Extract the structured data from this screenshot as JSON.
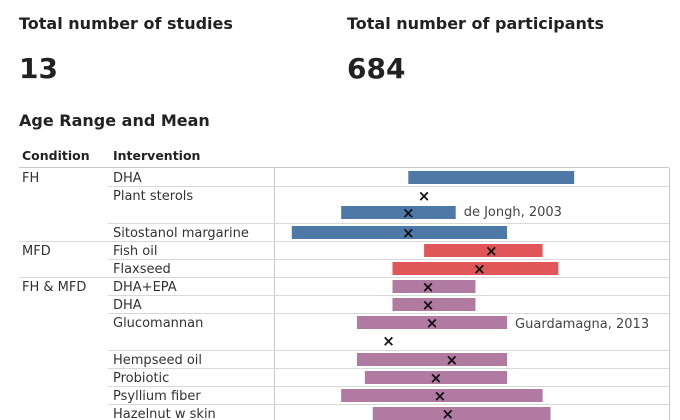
{
  "kpis": {
    "studies_label": "Total number of studies",
    "studies_value": "13",
    "participants_label": "Total number of participants",
    "participants_value": "684"
  },
  "section_title": "Age Range and Mean",
  "chart_data": {
    "type": "range",
    "columns": [
      "Condition",
      "Intervention"
    ],
    "xlim": [
      0,
      1
    ],
    "colors": {
      "FH": "#4e79a7",
      "MFD": "#e15759",
      "FH & MFD": "#b07aa1"
    },
    "rows": [
      {
        "condition": "FH",
        "intervention": "DHA",
        "bars": [
          {
            "min": 0.34,
            "max": 0.76
          }
        ],
        "marks": [],
        "annotation": ""
      },
      {
        "condition": "",
        "intervention": "Plant sterols",
        "bars": [
          {
            "min": 0.17,
            "max": 0.46
          }
        ],
        "marks": [
          0.38,
          0.34
        ],
        "annotation": "de Jongh, 2003"
      },
      {
        "condition": "",
        "intervention": "Sitostanol margarine",
        "bars": [
          {
            "min": 0.045,
            "max": 0.59
          }
        ],
        "marks": [
          0.34
        ],
        "annotation": ""
      },
      {
        "condition": "MFD",
        "intervention": "Fish oil",
        "bars": [
          {
            "min": 0.38,
            "max": 0.68
          }
        ],
        "marks": [
          0.55
        ],
        "annotation": ""
      },
      {
        "condition": "",
        "intervention": "Flaxseed",
        "bars": [
          {
            "min": 0.3,
            "max": 0.72
          }
        ],
        "marks": [
          0.52
        ],
        "annotation": ""
      },
      {
        "condition": "FH & MFD",
        "intervention": "DHA+EPA",
        "bars": [
          {
            "min": 0.3,
            "max": 0.51
          }
        ],
        "marks": [
          0.39
        ],
        "annotation": ""
      },
      {
        "condition": "",
        "intervention": "DHA",
        "bars": [
          {
            "min": 0.3,
            "max": 0.51
          }
        ],
        "marks": [
          0.39
        ],
        "annotation": ""
      },
      {
        "condition": "",
        "intervention": "Glucomannan",
        "bars": [
          {
            "min": 0.21,
            "max": 0.59
          }
        ],
        "marks": [
          0.4,
          0.29
        ],
        "annotation": "Guardamagna, 2013"
      },
      {
        "condition": "",
        "intervention": "Hempseed oil",
        "bars": [
          {
            "min": 0.21,
            "max": 0.59
          }
        ],
        "marks": [
          0.45
        ],
        "annotation": ""
      },
      {
        "condition": "",
        "intervention": "Probiotic",
        "bars": [
          {
            "min": 0.23,
            "max": 0.59
          }
        ],
        "marks": [
          0.41
        ],
        "annotation": ""
      },
      {
        "condition": "",
        "intervention": "Psyllium fiber",
        "bars": [
          {
            "min": 0.17,
            "max": 0.68
          }
        ],
        "marks": [
          0.42
        ],
        "annotation": ""
      },
      {
        "condition": "",
        "intervention": "Hazelnut w skin",
        "bars": [
          {
            "min": 0.25,
            "max": 0.7
          }
        ],
        "marks": [
          0.44
        ],
        "annotation": ""
      }
    ]
  }
}
